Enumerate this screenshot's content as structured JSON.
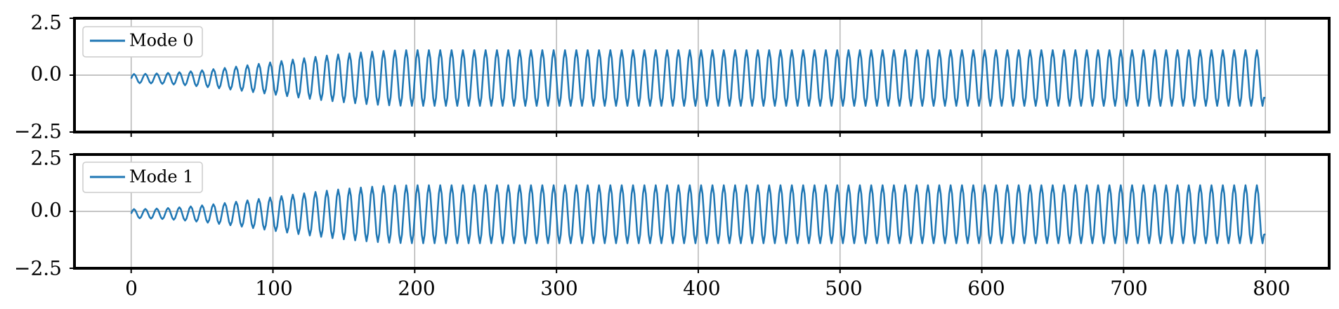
{
  "chart_data": [
    {
      "type": "line",
      "series": [
        {
          "name": "Mode 0",
          "color": "#1f77b4",
          "signal": {
            "form": "growing oscillation",
            "period": 8,
            "initial_amplitude": 0.2,
            "center_offset": -0.15,
            "saturated_upper": 1.1,
            "saturated_lower": -1.35,
            "saturation_x": 200,
            "final_value": -1.0
          }
        }
      ],
      "legend_position": "upper-left",
      "xlim": [
        -40,
        845
      ],
      "ylim": [
        -2.5,
        2.5
      ],
      "grid": true,
      "xticks": [
        0,
        100,
        200,
        300,
        400,
        500,
        600,
        700,
        800
      ],
      "xtick_labels_visible": false,
      "yticks": [
        "2.5",
        "0.0",
        "−2.5"
      ]
    },
    {
      "type": "line",
      "series": [
        {
          "name": "Mode 1",
          "color": "#1f77b4",
          "signal": {
            "form": "growing oscillation",
            "period": 8,
            "initial_amplitude": 0.2,
            "center_offset": -0.1,
            "saturated_upper": 1.15,
            "saturated_lower": -1.4,
            "saturation_x": 200,
            "final_value": -1.0
          }
        }
      ],
      "legend_position": "upper-left",
      "xlim": [
        -40,
        845
      ],
      "ylim": [
        -2.5,
        2.5
      ],
      "grid": true,
      "xticks": [
        0,
        100,
        200,
        300,
        400,
        500,
        600,
        700,
        800
      ],
      "xtick_labels": [
        "0",
        "100",
        "200",
        "300",
        "400",
        "500",
        "600",
        "700",
        "800"
      ],
      "yticks": [
        "2.5",
        "0.0",
        "−2.5"
      ]
    }
  ]
}
